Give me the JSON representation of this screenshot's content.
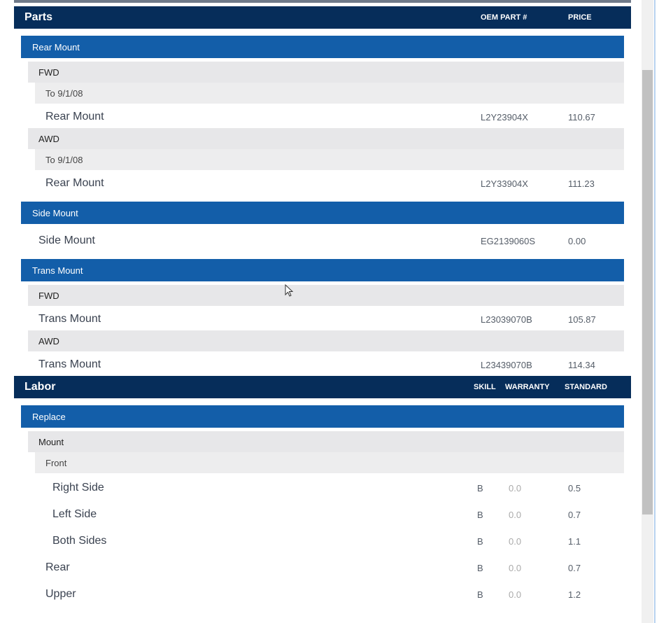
{
  "parts": {
    "title": "Parts",
    "col_oem": "OEM PART #",
    "col_price": "PRICE",
    "rear_mount": {
      "label": "Rear Mount",
      "fwd": {
        "label": "FWD",
        "date": "To 9/1/08",
        "item": {
          "name": "Rear Mount",
          "oem": "L2Y23904X",
          "price": "110.67"
        }
      },
      "awd": {
        "label": "AWD",
        "date": "To 9/1/08",
        "item": {
          "name": "Rear Mount",
          "oem": "L2Y33904X",
          "price": "111.23"
        }
      }
    },
    "side_mount": {
      "label": "Side Mount",
      "item": {
        "name": "Side Mount",
        "oem": "EG2139060S",
        "price": "0.00"
      }
    },
    "trans_mount": {
      "label": "Trans Mount",
      "fwd": {
        "label": "FWD",
        "item": {
          "name": "Trans Mount",
          "oem": "L23039070B",
          "price": "105.87"
        }
      },
      "awd": {
        "label": "AWD",
        "item": {
          "name": "Trans Mount",
          "oem": "L23439070B",
          "price": "114.34"
        }
      }
    }
  },
  "labor": {
    "title": "Labor",
    "col_skill": "SKILL",
    "col_warranty": "WARRANTY",
    "col_standard": "STANDARD",
    "replace": {
      "label": "Replace",
      "mount": "Mount",
      "front": "Front",
      "items": [
        {
          "name": "Right Side",
          "skill": "B",
          "warranty": "0.0",
          "standard": "0.5"
        },
        {
          "name": "Left Side",
          "skill": "B",
          "warranty": "0.0",
          "standard": "0.7"
        },
        {
          "name": "Both Sides",
          "skill": "B",
          "warranty": "0.0",
          "standard": "1.1"
        },
        {
          "name": "Rear",
          "skill": "B",
          "warranty": "0.0",
          "standard": "0.7"
        },
        {
          "name": "Upper",
          "skill": "B",
          "warranty": "0.0",
          "standard": "1.2"
        }
      ]
    }
  }
}
